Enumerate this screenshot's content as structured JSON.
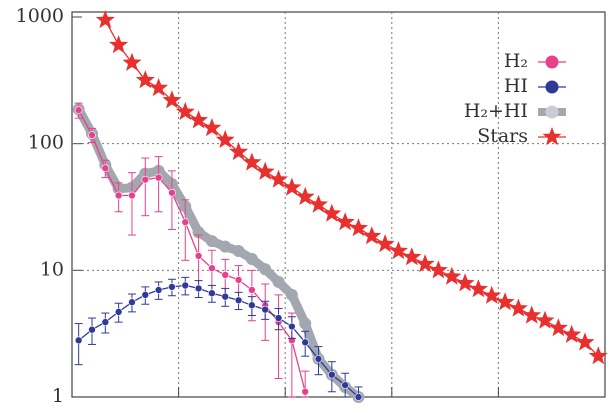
{
  "chart_data": {
    "type": "line",
    "log_y": true,
    "grid": true,
    "legend": "upper right",
    "x": [
      0.0625,
      0.1875,
      0.3125,
      0.4375,
      0.5625,
      0.6875,
      0.8125,
      0.9375,
      1.0625,
      1.1875,
      1.3125,
      1.4375,
      1.5625,
      1.6875,
      1.8125,
      1.9375,
      2.0625,
      2.1875,
      2.3125,
      2.4375,
      2.5625,
      2.6875,
      2.8125,
      2.9375,
      3.0625,
      3.1875,
      3.3125,
      3.4375,
      3.5625,
      3.6875,
      3.8125,
      3.9375,
      4.0625,
      4.1875,
      4.3125,
      4.4375,
      4.5625,
      4.6875,
      4.8125,
      4.9375
    ],
    "xlim": [
      0,
      5
    ],
    "xticks": [
      1,
      2,
      3,
      4
    ],
    "ylim": [
      1,
      1000
    ],
    "yticks": [
      1,
      10,
      100,
      1000
    ],
    "series": [
      {
        "name": "H₂",
        "color": "#e8408c",
        "marker": "circle",
        "values": [
          184,
          117,
          64,
          39,
          39,
          52,
          54,
          41,
          24,
          13,
          10.4,
          9.2,
          8.4,
          7,
          5.3,
          3.9,
          2.8,
          1.1,
          null,
          null,
          null,
          null,
          null,
          null,
          null,
          null,
          null,
          null,
          null,
          null,
          null,
          null,
          null,
          null,
          null,
          null,
          null,
          null,
          null,
          null
        ],
        "errors": [
          25,
          15,
          10,
          10,
          20,
          25,
          25,
          20,
          12,
          6,
          4,
          3,
          2.5,
          3,
          2.5,
          2.5,
          1.8,
          0.5,
          null,
          null,
          null,
          null,
          null,
          null,
          null,
          null,
          null,
          null,
          null,
          null,
          null,
          null,
          null,
          null,
          null,
          null,
          null,
          null,
          null,
          null
        ]
      },
      {
        "name": "HI",
        "color": "#2e3a9a",
        "marker": "circle",
        "values": [
          2.8,
          3.4,
          3.9,
          4.7,
          5.6,
          6.4,
          7.0,
          7.4,
          7.6,
          7.2,
          6.6,
          6.2,
          5.8,
          5.3,
          4.9,
          4.2,
          3.6,
          2.7,
          2.0,
          1.5,
          1.24,
          1.0,
          null,
          null,
          null,
          null,
          null,
          null,
          null,
          null,
          null,
          null,
          null,
          null,
          null,
          null,
          null,
          null,
          null,
          null
        ],
        "errors": [
          1.0,
          0.8,
          0.7,
          0.8,
          0.9,
          1.0,
          1.1,
          1.1,
          1.2,
          1.1,
          1.0,
          1.0,
          0.9,
          0.9,
          0.8,
          0.8,
          0.7,
          0.6,
          0.5,
          0.4,
          0.3,
          0.2,
          null,
          null,
          null,
          null,
          null,
          null,
          null,
          null,
          null,
          null,
          null,
          null,
          null,
          null,
          null,
          null,
          null,
          null
        ]
      },
      {
        "name": "H₂+HI",
        "color": "#a3a8b0",
        "marker": "circle",
        "values": [
          187,
          120,
          68,
          44,
          45,
          58,
          61,
          48,
          32,
          20,
          17,
          15.4,
          14.2,
          12.3,
          10.2,
          8.1,
          6.4,
          3.8,
          2.0,
          1.5,
          1.2,
          1.0,
          null,
          null,
          null,
          null,
          null,
          null,
          null,
          null,
          null,
          null,
          null,
          null,
          null,
          null,
          null,
          null,
          null,
          null
        ]
      },
      {
        "name": "Stars",
        "color": "#e8302f",
        "marker": "star",
        "values": [
          null,
          null,
          946,
          600,
          435,
          317,
          275,
          220,
          178,
          153,
          133,
          107,
          86,
          71,
          60,
          52,
          45,
          38,
          33,
          28,
          24,
          21.5,
          18.6,
          16.1,
          14.2,
          12.7,
          11.2,
          10,
          8.9,
          7.9,
          7.1,
          6.3,
          5.6,
          5.0,
          4.4,
          4.0,
          3.5,
          3.1,
          2.7,
          2.1
        ]
      }
    ]
  }
}
